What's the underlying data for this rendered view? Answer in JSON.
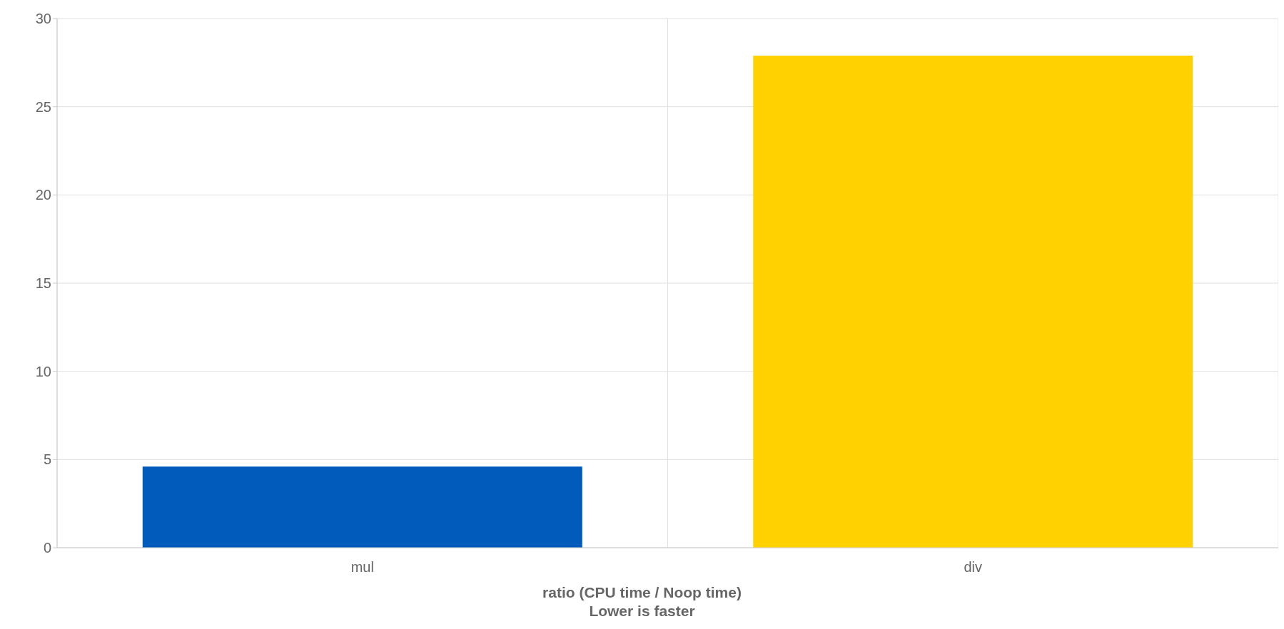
{
  "chart_data": {
    "type": "bar",
    "xlabel": "ratio (CPU time / Noop time)\nLower is faster",
    "categories": [
      "mul",
      "div"
    ],
    "values": [
      4.6,
      27.9
    ],
    "colors": [
      "#005bbb",
      "#ffd100"
    ],
    "ylim": [
      0,
      30
    ],
    "yticks": [
      0,
      5,
      10,
      15,
      20,
      25,
      30
    ],
    "grid": true
  }
}
